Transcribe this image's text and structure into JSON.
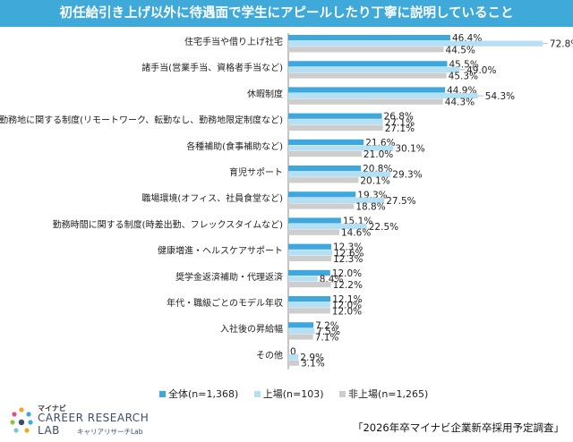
{
  "header": {
    "title": "初任給引き上げ以外に待遇面で学生にアピールしたり丁寧に説明していること"
  },
  "colors": {
    "header": "#3fa9d9",
    "all": "#3ea8de",
    "listed": "#b5dff2",
    "unlisted": "#cdcdcd",
    "callout": "#bbbbbb"
  },
  "legend": [
    {
      "label": "全体(n=1,368)",
      "color": "#3ea8de"
    },
    {
      "label": "上場(n=103)",
      "color": "#b5dff2"
    },
    {
      "label": "非上場(n=1,265)",
      "color": "#cdcdcd"
    }
  ],
  "logo": {
    "brand": "マイナビ",
    "line1": "CAREER RESEARCH",
    "line2": "LAB",
    "sub": "キャリアリサーチLab",
    "icon": "dots-logo-icon"
  },
  "source": "「2026年卒マイナビ企業新卒採用予定調査」",
  "chart_data": {
    "type": "bar",
    "orientation": "horizontal",
    "title": "初任給引き上げ以外に待遇面で学生にアピールしたり丁寧に説明していること",
    "categories": [
      "住宅手当や借り上げ社宅",
      "諸手当(営業手当、資格者手当など)",
      "休暇制度",
      "勤務地に関する制度(リモートワーク、転勤なし、勤務地限定制度など)",
      "各種補助(食事補助など)",
      "育児サポート",
      "職場環境(オフィス、社員食堂など)",
      "勤務時間に関する制度(時差出勤、フレックスタイムなど)",
      "健康増進・ヘルスケアサポート",
      "奨学金返済補助・代理返済",
      "年代・職級ごとのモデル年収",
      "入社後の昇給幅",
      "その他"
    ],
    "series": [
      {
        "name": "全体(n=1,368)",
        "values": [
          46.4,
          45.5,
          44.9,
          26.8,
          21.6,
          20.8,
          19.3,
          15.1,
          12.3,
          12.0,
          12.1,
          7.2,
          0
        ],
        "labels": [
          "46.4%",
          "45.5%",
          "44.9%",
          "26.8%",
          "21.6%",
          "20.8%",
          "19.3%",
          "15.1%",
          "12.3%",
          "12.0%",
          "12.1%",
          "7.2%",
          "0"
        ]
      },
      {
        "name": "上場(n=103)",
        "values": [
          72.8,
          49.0,
          54.3,
          27.1,
          30.1,
          29.3,
          27.5,
          22.5,
          12.6,
          8.4,
          12.0,
          7.5,
          2.9
        ],
        "labels": [
          "72.8%",
          "49.0%",
          "54.3%",
          "27.1%",
          "30.1%",
          "29.3%",
          "27.5%",
          "22.5%",
          "12.6%",
          "8.4%",
          "12.0%",
          "7.5%",
          "2.9%"
        ]
      },
      {
        "name": "非上場(n=1,265)",
        "values": [
          44.5,
          45.3,
          44.3,
          27.1,
          21.0,
          20.1,
          18.8,
          14.6,
          12.3,
          12.2,
          12.0,
          7.1,
          3.1
        ],
        "labels": [
          "44.5%",
          "45.3%",
          "44.3%",
          "27.1%",
          "21.0%",
          "20.1%",
          "18.8%",
          "14.6%",
          "12.3%",
          "12.2%",
          "12.0%",
          "7.1%",
          "3.1%"
        ]
      }
    ],
    "xlim": [
      0,
      80
    ],
    "grid": false,
    "legend_position": "bottom"
  }
}
